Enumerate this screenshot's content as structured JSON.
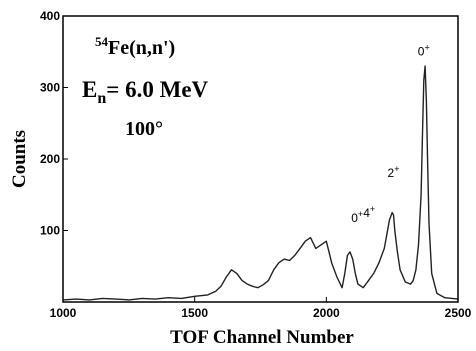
{
  "chart_data": {
    "type": "line",
    "xlabel": "TOF Channel Number",
    "ylabel": "Counts",
    "xlim": [
      1000,
      2500
    ],
    "ylim": [
      0,
      400
    ],
    "xticks": [
      1000,
      1500,
      2000,
      2500
    ],
    "yticks": [
      100,
      200,
      300,
      400
    ],
    "grid": false,
    "annotation": {
      "reaction_mass": "54",
      "reaction_rest": "Fe(n,n')",
      "energy_prefix": "E",
      "energy_sub": "n",
      "energy_rest": "= 6.0 MeV",
      "angle": "100°"
    },
    "peak_labels": [
      {
        "text": "0",
        "sup": "+",
        "x": 2370,
        "y": 345
      },
      {
        "text": "2",
        "sup": "+",
        "x": 2255,
        "y": 175
      },
      {
        "text": "0",
        "sup": "+",
        "text2": "4",
        "sup2": "+",
        "x": 2140,
        "y": 112
      }
    ],
    "series": [
      {
        "x": [
          1000,
          1050,
          1100,
          1150,
          1200,
          1250,
          1300,
          1350,
          1400,
          1450,
          1500,
          1550,
          1580,
          1600,
          1620,
          1640,
          1660,
          1680,
          1700,
          1720,
          1740,
          1760,
          1780,
          1800,
          1820,
          1840,
          1860,
          1880,
          1900,
          1920,
          1940,
          1960,
          1980,
          2000,
          2010,
          2020,
          2040,
          2060,
          2070,
          2080,
          2090,
          2100,
          2110,
          2120,
          2140,
          2160,
          2180,
          2200,
          2220,
          2230,
          2240,
          2250,
          2255,
          2260,
          2270,
          2280,
          2300,
          2320,
          2330,
          2340,
          2350,
          2360,
          2365,
          2370,
          2375,
          2380,
          2385,
          2390,
          2400,
          2420,
          2450,
          2500
        ],
        "y": [
          3,
          4,
          3,
          5,
          4,
          3,
          5,
          4,
          6,
          5,
          8,
          10,
          15,
          22,
          35,
          45,
          40,
          30,
          25,
          22,
          20,
          24,
          30,
          45,
          55,
          60,
          58,
          65,
          75,
          85,
          90,
          75,
          80,
          85,
          70,
          55,
          35,
          20,
          40,
          65,
          70,
          60,
          40,
          25,
          20,
          30,
          40,
          55,
          75,
          95,
          115,
          125,
          122,
          100,
          70,
          45,
          28,
          25,
          30,
          45,
          80,
          150,
          230,
          310,
          330,
          280,
          190,
          110,
          40,
          12,
          6,
          4
        ]
      }
    ]
  }
}
